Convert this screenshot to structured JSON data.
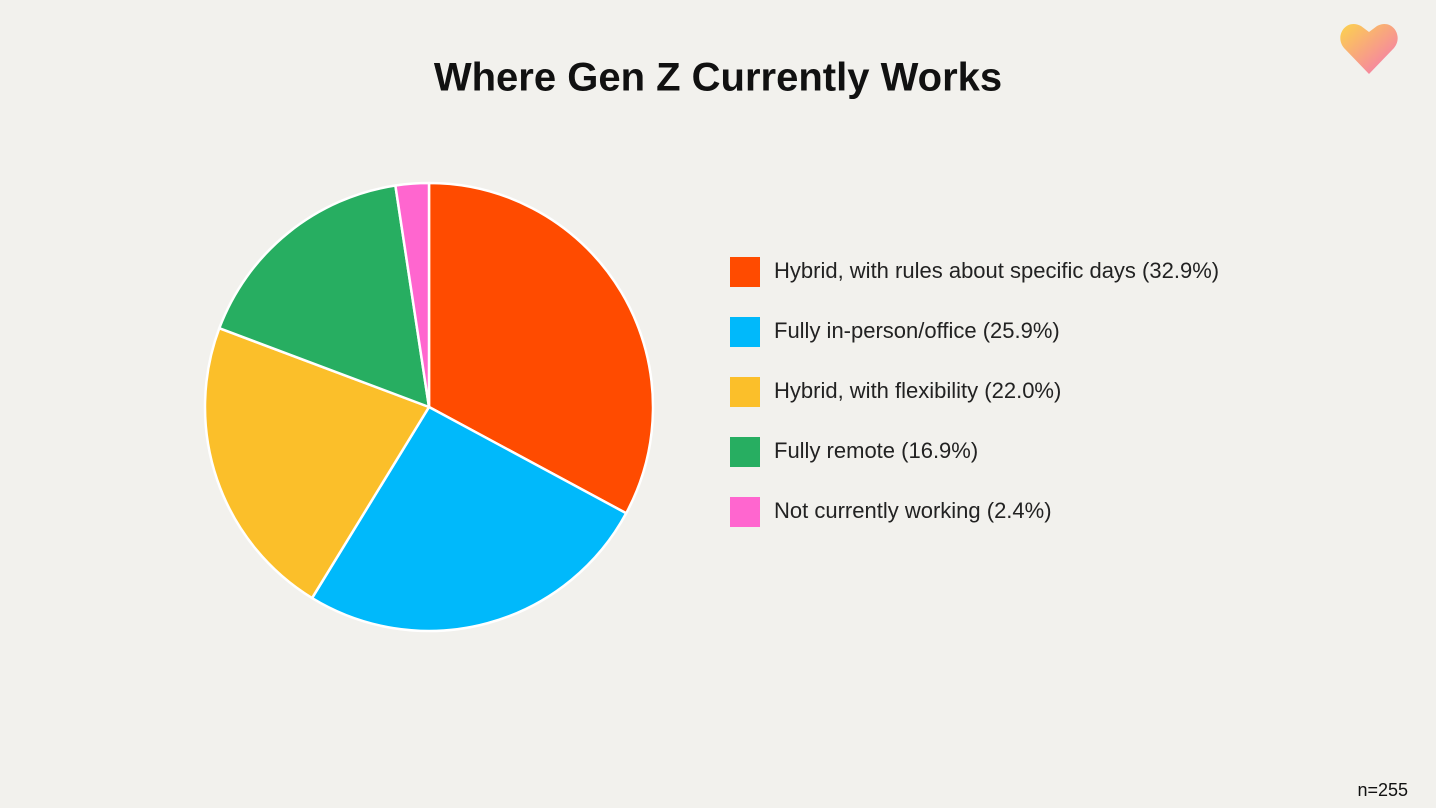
{
  "chart_data": {
    "type": "pie",
    "title": "Where Gen Z Currently Works",
    "categories": [
      "Hybrid, with rules about specific days (32.9%)",
      "Fully in-person/office (25.9%)",
      "Hybrid, with flexibility (22.0%)",
      "Fully remote (16.9%)",
      "Not currently working (2.4%)"
    ],
    "values": [
      32.9,
      25.9,
      22.0,
      16.9,
      2.4
    ],
    "colors": [
      "#ff4b00",
      "#00b9fb",
      "#fbbf2a",
      "#27ae61",
      "#ff66cf"
    ],
    "legend": "right",
    "footnote": "n=255"
  }
}
